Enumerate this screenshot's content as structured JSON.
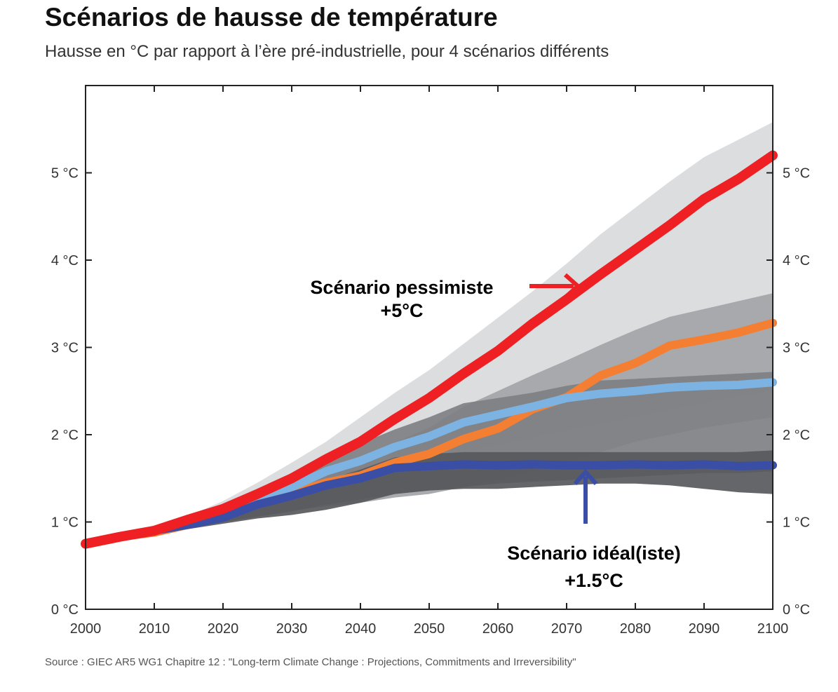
{
  "header": {
    "title": "Scénarios de hausse de température",
    "subtitle": "Hausse en °C par rapport à l’ère pré-industrielle, pour 4 scénarios différents"
  },
  "footer": {
    "source": "Source : GIEC AR5 WG1 Chapitre 12 : \"Long-term Climate Change : Projections, Commitments and Irreversibility\""
  },
  "chart_data": {
    "type": "area",
    "title": "Scénarios de hausse de température",
    "subtitle": "Hausse en °C par rapport à l’ère pré-industrielle, pour 4 scénarios différents",
    "xlabel": "",
    "ylabel": "",
    "xlim": [
      2000,
      2100
    ],
    "ylim": [
      0,
      6
    ],
    "x_ticks": [
      2000,
      2010,
      2020,
      2030,
      2040,
      2050,
      2060,
      2070,
      2080,
      2090,
      2100
    ],
    "x_tick_labels": [
      "2000",
      "2010",
      "2020",
      "2030",
      "2040",
      "2050",
      "2060",
      "2070",
      "2080",
      "2090",
      "2100"
    ],
    "y_ticks": [
      0,
      1,
      2,
      3,
      4,
      5
    ],
    "y_tick_labels": [
      "0 °C",
      "1 °C",
      "2 °C",
      "3 °C",
      "4 °C",
      "5 °C"
    ],
    "grid": false,
    "legend": "none",
    "x": [
      2000,
      2005,
      2010,
      2015,
      2020,
      2025,
      2030,
      2035,
      2040,
      2045,
      2050,
      2055,
      2060,
      2065,
      2070,
      2075,
      2080,
      2085,
      2090,
      2095,
      2100
    ],
    "series": [
      {
        "color": "#ee2024",
        "values": [
          0.75,
          0.83,
          0.9,
          1.03,
          1.15,
          1.32,
          1.5,
          1.72,
          1.92,
          2.18,
          2.42,
          2.7,
          2.96,
          3.27,
          3.55,
          3.84,
          4.12,
          4.4,
          4.7,
          4.93,
          5.2
        ],
        "band": [
          [
            0.75,
            0.75
          ],
          [
            0.83,
            0.83
          ],
          [
            0.88,
            0.92
          ],
          [
            0.98,
            1.07
          ],
          [
            1.06,
            1.24
          ],
          [
            1.16,
            1.45
          ],
          [
            1.26,
            1.68
          ],
          [
            1.38,
            1.92
          ],
          [
            1.5,
            2.2
          ],
          [
            1.62,
            2.48
          ],
          [
            1.72,
            2.74
          ],
          [
            1.8,
            3.04
          ],
          [
            1.88,
            3.34
          ],
          [
            1.96,
            3.64
          ],
          [
            2.04,
            3.96
          ],
          [
            2.12,
            4.3
          ],
          [
            2.2,
            4.6
          ],
          [
            2.28,
            4.9
          ],
          [
            2.36,
            5.18
          ],
          [
            2.44,
            5.38
          ],
          [
            2.5,
            5.58
          ]
        ],
        "band_color": "#d9dadc"
      },
      {
        "color": "#f47f32",
        "values": [
          0.75,
          0.83,
          0.88,
          0.97,
          1.07,
          1.22,
          1.33,
          1.45,
          1.53,
          1.68,
          1.78,
          1.95,
          2.07,
          2.29,
          2.43,
          2.68,
          2.82,
          3.02,
          3.09,
          3.17,
          3.28
        ],
        "band": [
          [
            0.75,
            0.75
          ],
          [
            0.83,
            0.83
          ],
          [
            0.86,
            0.9
          ],
          [
            0.92,
            1.0
          ],
          [
            1.0,
            1.13
          ],
          [
            1.06,
            1.3
          ],
          [
            1.13,
            1.43
          ],
          [
            1.18,
            1.58
          ],
          [
            1.22,
            1.72
          ],
          [
            1.28,
            1.91
          ],
          [
            1.32,
            2.08
          ],
          [
            1.4,
            2.32
          ],
          [
            1.48,
            2.5
          ],
          [
            1.58,
            2.68
          ],
          [
            1.68,
            2.85
          ],
          [
            1.8,
            3.03
          ],
          [
            1.92,
            3.2
          ],
          [
            2.0,
            3.35
          ],
          [
            2.08,
            3.44
          ],
          [
            2.14,
            3.53
          ],
          [
            2.2,
            3.62
          ]
        ],
        "band_color": "#a3a4a7"
      },
      {
        "color": "#7db3e2",
        "values": [
          0.75,
          0.83,
          0.9,
          0.98,
          1.09,
          1.27,
          1.4,
          1.58,
          1.7,
          1.86,
          1.98,
          2.14,
          2.23,
          2.32,
          2.42,
          2.47,
          2.5,
          2.54,
          2.56,
          2.57,
          2.6
        ],
        "band": [
          [
            0.75,
            0.75
          ],
          [
            0.83,
            0.83
          ],
          [
            0.86,
            0.92
          ],
          [
            0.92,
            1.02
          ],
          [
            1.0,
            1.16
          ],
          [
            1.06,
            1.38
          ],
          [
            1.12,
            1.56
          ],
          [
            1.2,
            1.74
          ],
          [
            1.26,
            1.9
          ],
          [
            1.32,
            2.06
          ],
          [
            1.36,
            2.2
          ],
          [
            1.4,
            2.36
          ],
          [
            1.44,
            2.42
          ],
          [
            1.46,
            2.48
          ],
          [
            1.48,
            2.56
          ],
          [
            1.5,
            2.62
          ],
          [
            1.52,
            2.64
          ],
          [
            1.54,
            2.66
          ],
          [
            1.56,
            2.68
          ],
          [
            1.56,
            2.7
          ],
          [
            1.58,
            2.72
          ]
        ],
        "band_color": "#7f8083"
      },
      {
        "color": "#3b4ea6",
        "values": [
          0.75,
          0.83,
          0.9,
          0.97,
          1.05,
          1.2,
          1.3,
          1.42,
          1.5,
          1.62,
          1.64,
          1.66,
          1.65,
          1.66,
          1.65,
          1.65,
          1.66,
          1.65,
          1.66,
          1.64,
          1.65
        ],
        "band": [
          [
            0.75,
            0.75
          ],
          [
            0.83,
            0.83
          ],
          [
            0.86,
            0.9
          ],
          [
            0.92,
            1.0
          ],
          [
            0.98,
            1.1
          ],
          [
            1.04,
            1.24
          ],
          [
            1.08,
            1.36
          ],
          [
            1.14,
            1.48
          ],
          [
            1.22,
            1.6
          ],
          [
            1.32,
            1.74
          ],
          [
            1.36,
            1.78
          ],
          [
            1.38,
            1.8
          ],
          [
            1.38,
            1.8
          ],
          [
            1.4,
            1.8
          ],
          [
            1.42,
            1.8
          ],
          [
            1.44,
            1.8
          ],
          [
            1.44,
            1.8
          ],
          [
            1.42,
            1.8
          ],
          [
            1.38,
            1.8
          ],
          [
            1.34,
            1.8
          ],
          [
            1.32,
            1.82
          ]
        ],
        "band_color": "#58595c"
      }
    ],
    "annotations": [
      {
        "text": "Scénario pessimiste",
        "color": "#ee2024",
        "points_to": [
          2073,
          3.65
        ]
      },
      {
        "text": "+5°C",
        "color": "#ee2024"
      },
      {
        "text": "Scénario idéal(iste)",
        "color": "#3b4ea6",
        "points_to": [
          2073,
          1.55
        ]
      },
      {
        "text": "+1.5°C",
        "color": "#3b4ea6"
      }
    ]
  }
}
